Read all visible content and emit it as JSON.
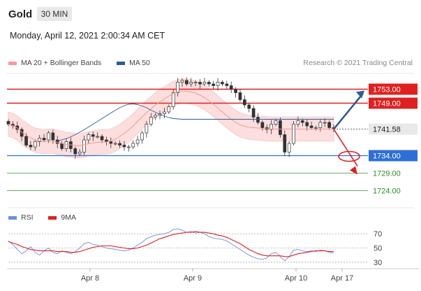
{
  "header": {
    "title": "Gold",
    "timeframe": "30 MIN",
    "datetime": "Monday, April 12, 2021 2:00:34 AM CET"
  },
  "legend": {
    "items": [
      {
        "label": "MA 20 + Bollinger Bands",
        "color": "#f39a9a"
      },
      {
        "label": "MA 50",
        "color": "#2f5b96"
      }
    ],
    "credit": "Research © 2021 Trading Central"
  },
  "chart_data": {
    "type": "line",
    "price_panel": {
      "ylim": [
        1720.5,
        1756.5
      ],
      "levels": [
        {
          "value": 1753.0,
          "label": "1753.00",
          "kind": "resistance",
          "color": "#e02020"
        },
        {
          "value": 1749.0,
          "label": "1749.00",
          "kind": "resistance",
          "color": "#e02020"
        },
        {
          "value": 1741.58,
          "label": "1741.58",
          "kind": "last_price",
          "color": "#333333"
        },
        {
          "value": 1734.0,
          "label": "1734.00",
          "kind": "pivot",
          "color": "#2d6fd6"
        },
        {
          "value": 1729.0,
          "label": "1729.00",
          "kind": "support",
          "color": "#2e8b2e"
        },
        {
          "value": 1724.0,
          "label": "1724.00",
          "kind": "support",
          "color": "#2e8b2e"
        }
      ],
      "close_series": [
        1743,
        1742.5,
        1741.5,
        1739.5,
        1737,
        1736.5,
        1738,
        1739,
        1738.5,
        1740.5,
        1738.5,
        1737.5,
        1736,
        1738,
        1736,
        1734.5,
        1735,
        1738.5,
        1740,
        1739.5,
        1739.5,
        1738.5,
        1738,
        1737.5,
        1737.5,
        1737,
        1736.5,
        1736.5,
        1737.5,
        1738.5,
        1740.5,
        1743,
        1745,
        1745.5,
        1746,
        1746.5,
        1748,
        1752,
        1755,
        1755.5,
        1754.5,
        1755,
        1755,
        1754.5,
        1755,
        1754.5,
        1754,
        1755,
        1754.5,
        1754,
        1753,
        1752,
        1750,
        1748.5,
        1747.5,
        1745,
        1743.5,
        1742,
        1741.5,
        1743,
        1744,
        1740,
        1735,
        1737.5,
        1743,
        1744,
        1743.5,
        1742.5,
        1742,
        1742,
        1743.5,
        1743.5,
        1742,
        1741.58
      ],
      "ma20_series": [
        1743,
        1742.6,
        1741.9,
        1740.7,
        1739.9,
        1739,
        1738.4,
        1738.2,
        1738,
        1738.1,
        1738.2,
        1737.8,
        1737.5,
        1737.2,
        1737.1,
        1736.9,
        1736.8,
        1737.1,
        1737.4,
        1737.6,
        1737.8,
        1737.9,
        1737.9,
        1738.2,
        1738.7,
        1739.5,
        1740.4,
        1741.4,
        1742.5,
        1743.8,
        1745.1,
        1746.3,
        1747.4,
        1748.5,
        1749.4,
        1750.2,
        1751,
        1751.7,
        1752.2,
        1752.5,
        1752.4,
        1752.2,
        1751.9,
        1751.3,
        1750.6,
        1749.7,
        1748.7,
        1747.6,
        1746.5,
        1745.4,
        1744.4,
        1743.5,
        1742.8,
        1742.4,
        1742.1,
        1742,
        1741.9,
        1741.8,
        1741.7,
        1741.6,
        1741.6,
        1741.6,
        1741.6,
        1741.6,
        1741.6,
        1741.6,
        1741.6,
        1741.6,
        1741.6,
        1741.6,
        1741.6,
        1741.6,
        1741.6,
        1741.6
      ],
      "ma50_series": [
        1739,
        1738.8,
        1738.6,
        1738.4,
        1738.2,
        1738.1,
        1738,
        1737.9,
        1737.9,
        1737.9,
        1738,
        1738.2,
        1738.5,
        1738.9,
        1739.4,
        1740,
        1740.7,
        1741.4,
        1742.2,
        1743,
        1743.8,
        1744.6,
        1745.4,
        1746.2,
        1747,
        1747.7,
        1748.3,
        1748.7,
        1748.8,
        1748.6,
        1748.2,
        1747.7,
        1747,
        1746.4,
        1745.8,
        1745.3,
        1744.9,
        1744.6,
        1744.5,
        1744.4,
        1744.4,
        1744.4,
        1744.4,
        1744.4,
        1744.4,
        1744.4,
        1744.4,
        1744.4,
        1744.4,
        1744.4,
        1744.4,
        1744.4,
        1744.4,
        1744.4,
        1744.4,
        1744.4,
        1744.4,
        1744.4,
        1744.4,
        1744.4,
        1744.4,
        1744.4,
        1744.4,
        1744.4,
        1744.4,
        1744.4,
        1744.4,
        1744.4,
        1744.4,
        1744.4,
        1744.4,
        1744.4,
        1744.4,
        1744.4
      ],
      "ma50_start_index": 11,
      "bollinger_band_width": 3.5,
      "scenarios": [
        {
          "direction": "up",
          "target": 1753.0,
          "color": "#2f5b96"
        },
        {
          "direction": "down",
          "target": 1729.0,
          "color": "#e02020"
        }
      ]
    },
    "rsi_panel": {
      "legend": [
        {
          "label": "RSI",
          "color": "#6f8fe0"
        },
        {
          "label": "9MA",
          "color": "#e02020"
        }
      ],
      "ylim": [
        25,
        80
      ],
      "y_ticks": [
        "70",
        "50",
        "30"
      ],
      "rsi_series": [
        60,
        55,
        48,
        42,
        46,
        52,
        44,
        40,
        46,
        50,
        44,
        42,
        46,
        44,
        42,
        45,
        50,
        56,
        58,
        55,
        54,
        52,
        50,
        49,
        48,
        47,
        46,
        47,
        50,
        54,
        58,
        63,
        66,
        68,
        69,
        70,
        72,
        76,
        77,
        75,
        72,
        73,
        71,
        72,
        70,
        66,
        64,
        63,
        62,
        60,
        56,
        52,
        48,
        44,
        40,
        37,
        35,
        34,
        36,
        42,
        44,
        38,
        32,
        38,
        47,
        48,
        46,
        45,
        46,
        45,
        47,
        46,
        44,
        43
      ],
      "ma9_series": [
        59,
        57,
        55,
        52,
        50,
        48,
        47,
        46,
        46,
        46,
        46,
        45,
        45,
        45,
        44,
        44,
        45,
        47,
        49,
        51,
        52,
        53,
        53,
        53,
        52,
        51,
        50,
        49,
        49,
        50,
        52,
        54,
        57,
        60,
        63,
        65,
        67,
        69,
        70,
        71,
        72,
        72,
        73,
        72,
        72,
        71,
        70,
        68,
        67,
        65,
        62,
        59,
        56,
        52,
        48,
        45,
        42,
        40,
        39,
        39,
        39,
        39,
        38,
        38,
        40,
        42,
        43,
        44,
        45,
        46,
        46,
        46,
        45,
        45
      ]
    },
    "x_ticks": [
      "Apr 8",
      "Apr 9",
      "Apr 10",
      "Apr 17"
    ]
  }
}
